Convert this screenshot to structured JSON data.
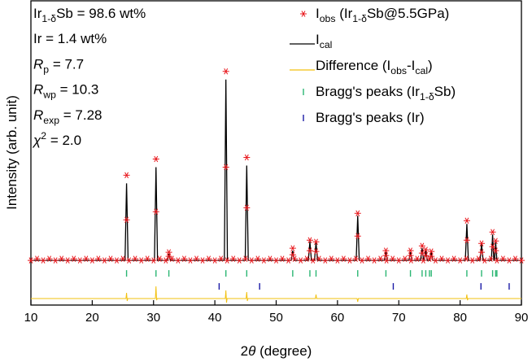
{
  "chart_data": {
    "type": "line",
    "annotations": [
      [
        {
          "t": "Ir"
        },
        {
          "sub": "1-δ"
        },
        {
          "t": "Sb = 98.6 wt%"
        }
      ],
      [
        {
          "t": "Ir = 1.4 wt%"
        }
      ],
      [
        {
          "i": "R"
        },
        {
          "sub": "p"
        },
        {
          "t": " = 7.7"
        }
      ],
      [
        {
          "i": "R"
        },
        {
          "sub": "wp"
        },
        {
          "t": " = 10.3"
        }
      ],
      [
        {
          "i": "R"
        },
        {
          "sub": "exp"
        },
        {
          "t": " = 7.28"
        }
      ],
      [
        {
          "i": "χ"
        },
        {
          "sup": "2"
        },
        {
          "t": " = 2.0"
        }
      ]
    ],
    "x_label": [
      {
        "t": "2"
      },
      {
        "i": "θ"
      },
      {
        "t": " (degree)"
      }
    ],
    "y_label": [
      {
        "t": "Intensity (arb. unit)"
      }
    ],
    "xlim": [
      10,
      90
    ],
    "xticks": [
      10,
      20,
      30,
      40,
      50,
      60,
      70,
      80,
      90
    ],
    "ylim": [
      -10,
      365
    ],
    "series": [
      {
        "name": [
          {
            "t": "I"
          },
          {
            "sub": "obs"
          },
          {
            "t": " (Ir"
          },
          {
            "sub": "1-δ"
          },
          {
            "t": "Sb@5.5GPa)"
          }
        ],
        "mode": "asterisk",
        "color": "#e8161b",
        "x": [
          10,
          11,
          12,
          13,
          14,
          15,
          16,
          17,
          18,
          19,
          20,
          21,
          22,
          23,
          24,
          25,
          26,
          27,
          28,
          29,
          30,
          31,
          32,
          33,
          34,
          35,
          36,
          37,
          38,
          39,
          40,
          41,
          42,
          43,
          44,
          45,
          46,
          47,
          48,
          49,
          50,
          51,
          52,
          53,
          54,
          55,
          56,
          57,
          58,
          59,
          60,
          61,
          62,
          63,
          64,
          65,
          66,
          67,
          68,
          69,
          70,
          71,
          72,
          73,
          74,
          75,
          76,
          77,
          78,
          79,
          80,
          81,
          82,
          83,
          84,
          85,
          86,
          87,
          88,
          89,
          90,
          25.6,
          25.6,
          30.4,
          30.4,
          32.5,
          32.5,
          41.8,
          41.8,
          45.2,
          45.2,
          52.7,
          52.7,
          55.5,
          55.5,
          56.5,
          56.5,
          63.3,
          63.3,
          67.9,
          67.9,
          71.9,
          71.9,
          73.8,
          73.8,
          74.4,
          74.4,
          75.3,
          75.3,
          81.1,
          81.1,
          83.5,
          83.5,
          85.3,
          85.3,
          85.8,
          85.8
        ],
        "values": [
          45,
          47,
          45,
          47,
          45,
          47,
          45,
          47,
          45,
          47,
          45,
          47,
          45,
          47,
          45,
          47,
          45,
          47,
          45,
          47,
          45,
          47,
          45,
          47,
          45,
          47,
          45,
          47,
          45,
          47,
          45,
          47,
          45,
          47,
          45,
          47,
          45,
          47,
          45,
          47,
          45,
          47,
          45,
          47,
          45,
          47,
          45,
          47,
          45,
          47,
          45,
          47,
          45,
          47,
          45,
          47,
          45,
          47,
          45,
          47,
          45,
          47,
          45,
          47,
          45,
          47,
          45,
          47,
          45,
          47,
          45,
          47,
          45,
          47,
          45,
          47,
          45,
          47,
          45,
          47,
          45,
          150,
          95,
          170,
          105,
          55,
          50,
          278,
          160,
          172,
          110,
          60,
          52,
          70,
          57,
          68,
          56,
          103,
          75,
          57,
          51,
          57,
          51,
          63,
          54,
          58,
          51,
          56,
          50,
          94,
          70,
          66,
          55,
          80,
          62,
          69,
          57
        ]
      },
      {
        "name": [
          {
            "t": "I"
          },
          {
            "sub": "cal"
          }
        ],
        "mode": "line",
        "color": "#000000",
        "x": [
          10,
          25.35,
          25.6,
          25.85,
          30.15,
          30.4,
          30.65,
          32.25,
          32.5,
          32.75,
          41.55,
          41.8,
          42.05,
          44.95,
          45.2,
          45.45,
          52.45,
          52.7,
          52.95,
          55.25,
          55.5,
          55.75,
          56.25,
          56.5,
          56.75,
          63.05,
          63.3,
          63.55,
          67.65,
          67.9,
          68.15,
          71.65,
          71.9,
          72.15,
          73.55,
          73.8,
          74.05,
          74.15,
          74.4,
          74.65,
          75.05,
          75.3,
          75.55,
          80.85,
          81.1,
          81.35,
          83.25,
          83.5,
          83.75,
          85.1,
          85.3,
          85.5,
          85.6,
          85.8,
          86.0,
          90
        ],
        "values": [
          45,
          45,
          140,
          45,
          45,
          160,
          45,
          45,
          53,
          45,
          45,
          268,
          45,
          45,
          162,
          45,
          45,
          57,
          45,
          45,
          68,
          45,
          45,
          67,
          45,
          45,
          100,
          45,
          45,
          55,
          45,
          45,
          55,
          45,
          45,
          60,
          45,
          45,
          57,
          45,
          45,
          55,
          45,
          45,
          90,
          45,
          45,
          65,
          45,
          45,
          77,
          45,
          45,
          67,
          45,
          45
        ]
      },
      {
        "name": [
          {
            "t": "Difference (I"
          },
          {
            "sub": "obs"
          },
          {
            "t": "-I"
          },
          {
            "sub": "cal"
          },
          {
            "t": ")"
          }
        ],
        "mode": "line",
        "color": "#f2c10f",
        "x": [
          10,
          25.5,
          25.6,
          25.7,
          25.8,
          30.3,
          30.4,
          30.5,
          30.6,
          41.7,
          41.8,
          41.9,
          42.0,
          45.1,
          45.2,
          45.3,
          45.4,
          56.4,
          56.5,
          56.6,
          63.2,
          63.3,
          63.4,
          81.0,
          81.1,
          81.2,
          81.3,
          90
        ],
        "values": [
          -2,
          -2,
          5,
          -5,
          -2,
          -2,
          13,
          -4,
          -2,
          -2,
          8,
          -7,
          -2,
          -2,
          6,
          -5,
          -2,
          -2,
          3,
          -2,
          -2,
          -6,
          -2,
          -2,
          3,
          -4,
          -2,
          -2
        ]
      },
      {
        "name": [
          {
            "t": "Bragg's peaks (Ir"
          },
          {
            "sub": "1-δ"
          },
          {
            "t": "Sb)"
          }
        ],
        "mode": "tick",
        "color": "#2bb673",
        "x": [
          25.6,
          30.4,
          32.5,
          41.8,
          45.2,
          52.7,
          55.5,
          56.5,
          63.3,
          67.9,
          71.9,
          73.8,
          74.4,
          75.0,
          75.3,
          81.1,
          83.5,
          85.3,
          85.8,
          86.0
        ],
        "values": [
          29,
          29,
          29,
          29,
          29,
          29,
          29,
          29,
          29,
          29,
          29,
          29,
          29,
          29,
          29,
          29,
          29,
          29,
          29,
          29
        ]
      },
      {
        "name": [
          {
            "t": "Bragg's peaks (Ir)"
          }
        ],
        "mode": "tick",
        "color": "#1a1aa6",
        "x": [
          40.7,
          47.3,
          69.1,
          83.4,
          88.0
        ],
        "values": [
          13,
          13,
          13,
          13,
          13
        ]
      }
    ]
  }
}
